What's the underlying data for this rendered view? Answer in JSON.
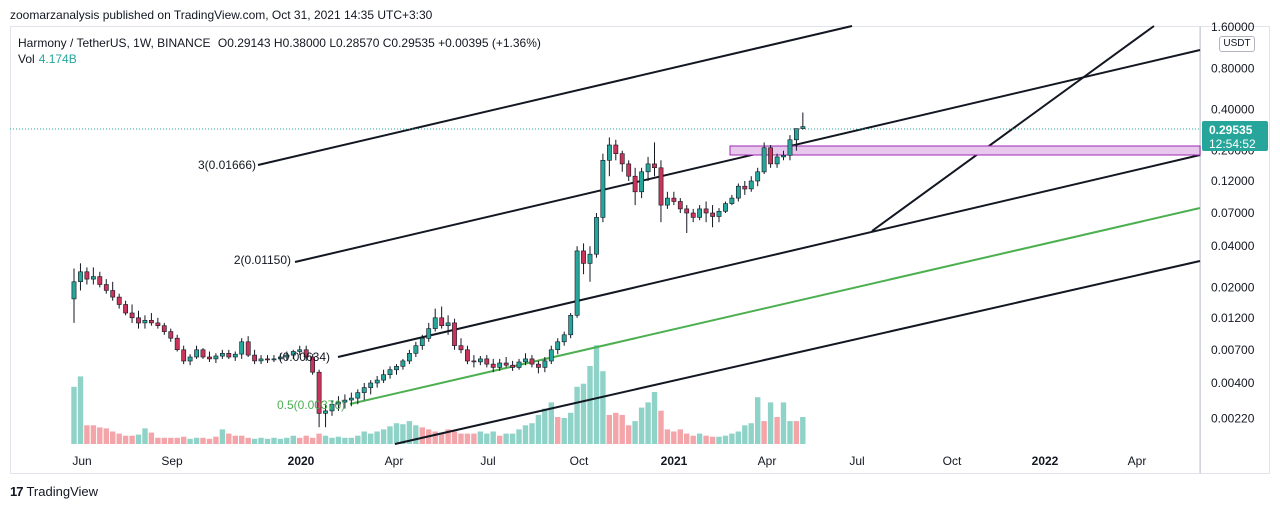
{
  "header": {
    "published_by": "zoomarzanalysis published on TradingView.com, Oct 31, 2021 14:35 UTC+3:30"
  },
  "legend": {
    "symbol": "Harmony / TetherUS, 1W, BINANCE",
    "open": "O0.29143",
    "high": "H0.38000",
    "low": "L0.28570",
    "close": "C0.29535",
    "change": "+0.00395 (+1.36%)",
    "vol_label": "Vol",
    "vol_value": "4.174B"
  },
  "price_scale": {
    "currency": "USDT",
    "last_price": "0.29535",
    "countdown": "12:54:52",
    "ticks": [
      "1.60000",
      "0.80000",
      "0.40000",
      "0.20000",
      "0.12000",
      "0.07000",
      "0.04000",
      "0.02000",
      "0.01200",
      "0.00700",
      "0.00400",
      "0.00220"
    ]
  },
  "footer": {
    "brand": "TradingView"
  },
  "colors": {
    "up": "#26a69a",
    "down": "#c8345a",
    "vol_up": "#8fd3c8",
    "vol_down": "#f3a5a9",
    "channel": "#131722",
    "green_line": "#4caf50",
    "zone_fill": "#e9c8ee",
    "zone_border": "#9c27b0"
  },
  "chart_data": {
    "type": "candlestick",
    "scale": "log",
    "ylim": [
      0.0018,
      1.6
    ],
    "x_ticks": [
      "Jun",
      "Sep",
      "2020",
      "Apr",
      "Jul",
      "Oct",
      "2021",
      "Apr",
      "Jul",
      "Oct",
      "2022",
      "Apr"
    ],
    "fib_labels": [
      {
        "text": "3(0.01666)"
      },
      {
        "text": "2(0.01150)"
      },
      {
        "text": "(0.00634)"
      },
      {
        "text": "0.5(0.00376)"
      }
    ],
    "candles": [
      [
        0.0165,
        0.0275,
        0.011,
        0.022
      ],
      [
        0.022,
        0.03,
        0.019,
        0.026
      ],
      [
        0.026,
        0.028,
        0.021,
        0.023
      ],
      [
        0.023,
        0.028,
        0.021,
        0.024
      ],
      [
        0.024,
        0.026,
        0.02,
        0.021
      ],
      [
        0.021,
        0.023,
        0.018,
        0.019
      ],
      [
        0.019,
        0.022,
        0.016,
        0.017
      ],
      [
        0.017,
        0.018,
        0.014,
        0.015
      ],
      [
        0.015,
        0.016,
        0.0125,
        0.013
      ],
      [
        0.013,
        0.015,
        0.011,
        0.012
      ],
      [
        0.012,
        0.0135,
        0.01,
        0.011
      ],
      [
        0.011,
        0.0125,
        0.01,
        0.0115
      ],
      [
        0.0115,
        0.013,
        0.0105,
        0.011
      ],
      [
        0.011,
        0.012,
        0.01,
        0.0105
      ],
      [
        0.0105,
        0.011,
        0.009,
        0.0095
      ],
      [
        0.0095,
        0.01,
        0.008,
        0.0085
      ],
      [
        0.0085,
        0.009,
        0.0068,
        0.007
      ],
      [
        0.007,
        0.0075,
        0.0055,
        0.0058
      ],
      [
        0.0058,
        0.0065,
        0.0054,
        0.0062
      ],
      [
        0.0062,
        0.0075,
        0.006,
        0.007
      ],
      [
        0.007,
        0.0072,
        0.006,
        0.0062
      ],
      [
        0.0062,
        0.0068,
        0.0057,
        0.006
      ],
      [
        0.006,
        0.0066,
        0.0056,
        0.0063
      ],
      [
        0.0063,
        0.007,
        0.006,
        0.0066
      ],
      [
        0.0066,
        0.007,
        0.006,
        0.0062
      ],
      [
        0.0062,
        0.0068,
        0.0058,
        0.0065
      ],
      [
        0.0065,
        0.0085,
        0.006,
        0.008
      ],
      [
        0.008,
        0.0088,
        0.0062,
        0.0064
      ],
      [
        0.0064,
        0.007,
        0.0055,
        0.0058
      ],
      [
        0.0058,
        0.0064,
        0.0055,
        0.006
      ],
      [
        0.006,
        0.0064,
        0.0056,
        0.0059
      ],
      [
        0.0059,
        0.0064,
        0.0057,
        0.006
      ],
      [
        0.006,
        0.0066,
        0.0058,
        0.0062
      ],
      [
        0.0062,
        0.0068,
        0.0059,
        0.0064
      ],
      [
        0.0064,
        0.007,
        0.006,
        0.0068
      ],
      [
        0.0068,
        0.0075,
        0.0064,
        0.007
      ],
      [
        0.007,
        0.0075,
        0.0058,
        0.0062
      ],
      [
        0.0062,
        0.0065,
        0.0046,
        0.0048
      ],
      [
        0.0048,
        0.005,
        0.0019,
        0.0024
      ],
      [
        0.0024,
        0.0028,
        0.0019,
        0.0025
      ],
      [
        0.0025,
        0.003,
        0.0023,
        0.0028
      ],
      [
        0.0028,
        0.0032,
        0.0025,
        0.0029
      ],
      [
        0.0029,
        0.0033,
        0.0026,
        0.003
      ],
      [
        0.003,
        0.0034,
        0.0027,
        0.0031
      ],
      [
        0.0031,
        0.0036,
        0.0028,
        0.0034
      ],
      [
        0.0034,
        0.004,
        0.003,
        0.0037
      ],
      [
        0.0037,
        0.0042,
        0.0033,
        0.004
      ],
      [
        0.004,
        0.0045,
        0.0037,
        0.0042
      ],
      [
        0.0042,
        0.005,
        0.004,
        0.0046
      ],
      [
        0.0046,
        0.0053,
        0.0043,
        0.005
      ],
      [
        0.005,
        0.0055,
        0.0046,
        0.0053
      ],
      [
        0.0053,
        0.006,
        0.005,
        0.0058
      ],
      [
        0.0058,
        0.007,
        0.0055,
        0.0066
      ],
      [
        0.0066,
        0.008,
        0.0062,
        0.0075
      ],
      [
        0.0075,
        0.009,
        0.007,
        0.0085
      ],
      [
        0.0085,
        0.011,
        0.008,
        0.01
      ],
      [
        0.01,
        0.014,
        0.0095,
        0.012
      ],
      [
        0.012,
        0.0145,
        0.01,
        0.0105
      ],
      [
        0.0105,
        0.0125,
        0.009,
        0.011
      ],
      [
        0.011,
        0.0118,
        0.007,
        0.0075
      ],
      [
        0.0075,
        0.0085,
        0.0066,
        0.007
      ],
      [
        0.007,
        0.0075,
        0.0055,
        0.0058
      ],
      [
        0.0058,
        0.0064,
        0.0052,
        0.0057
      ],
      [
        0.0057,
        0.0063,
        0.0054,
        0.006
      ],
      [
        0.006,
        0.0064,
        0.0052,
        0.0055
      ],
      [
        0.0055,
        0.006,
        0.0048,
        0.0052
      ],
      [
        0.0052,
        0.006,
        0.0049,
        0.0056
      ],
      [
        0.0056,
        0.0062,
        0.0052,
        0.0054
      ],
      [
        0.0054,
        0.0058,
        0.0049,
        0.0052
      ],
      [
        0.0052,
        0.006,
        0.005,
        0.0057
      ],
      [
        0.0057,
        0.0066,
        0.0054,
        0.006
      ],
      [
        0.006,
        0.0064,
        0.0052,
        0.0055
      ],
      [
        0.0055,
        0.0058,
        0.0047,
        0.0052
      ],
      [
        0.0052,
        0.0062,
        0.0048,
        0.0058
      ],
      [
        0.0058,
        0.0075,
        0.0055,
        0.007
      ],
      [
        0.007,
        0.0085,
        0.0065,
        0.008
      ],
      [
        0.008,
        0.0095,
        0.0075,
        0.009
      ],
      [
        0.009,
        0.013,
        0.0085,
        0.0125
      ],
      [
        0.0125,
        0.04,
        0.012,
        0.037
      ],
      [
        0.037,
        0.042,
        0.025,
        0.03
      ],
      [
        0.03,
        0.04,
        0.022,
        0.035
      ],
      [
        0.035,
        0.07,
        0.033,
        0.065
      ],
      [
        0.065,
        0.19,
        0.06,
        0.17
      ],
      [
        0.17,
        0.25,
        0.13,
        0.22
      ],
      [
        0.22,
        0.24,
        0.17,
        0.19
      ],
      [
        0.19,
        0.2,
        0.14,
        0.16
      ],
      [
        0.16,
        0.17,
        0.12,
        0.13
      ],
      [
        0.13,
        0.15,
        0.08,
        0.1
      ],
      [
        0.1,
        0.15,
        0.09,
        0.14
      ],
      [
        0.14,
        0.18,
        0.12,
        0.16
      ],
      [
        0.16,
        0.23,
        0.13,
        0.15
      ],
      [
        0.15,
        0.17,
        0.06,
        0.08
      ],
      [
        0.08,
        0.1,
        0.075,
        0.09
      ],
      [
        0.09,
        0.1,
        0.08,
        0.085
      ],
      [
        0.085,
        0.09,
        0.07,
        0.075
      ],
      [
        0.075,
        0.08,
        0.05,
        0.07
      ],
      [
        0.07,
        0.075,
        0.06,
        0.065
      ],
      [
        0.065,
        0.08,
        0.062,
        0.075
      ],
      [
        0.075,
        0.085,
        0.06,
        0.07
      ],
      [
        0.07,
        0.08,
        0.055,
        0.066
      ],
      [
        0.066,
        0.076,
        0.06,
        0.072
      ],
      [
        0.072,
        0.085,
        0.07,
        0.082
      ],
      [
        0.082,
        0.095,
        0.08,
        0.09
      ],
      [
        0.09,
        0.115,
        0.085,
        0.11
      ],
      [
        0.11,
        0.12,
        0.095,
        0.105
      ],
      [
        0.105,
        0.13,
        0.1,
        0.12
      ],
      [
        0.12,
        0.15,
        0.11,
        0.14
      ],
      [
        0.14,
        0.23,
        0.135,
        0.21
      ],
      [
        0.21,
        0.22,
        0.15,
        0.16
      ],
      [
        0.16,
        0.19,
        0.15,
        0.18
      ],
      [
        0.18,
        0.2,
        0.17,
        0.185
      ],
      [
        0.185,
        0.26,
        0.17,
        0.24
      ],
      [
        0.24,
        0.29,
        0.2,
        0.29
      ],
      [
        0.29,
        0.38,
        0.285,
        0.3
      ]
    ],
    "volumes": [
      [
        0.55,
        "up"
      ],
      [
        0.65,
        "up"
      ],
      [
        0.18,
        "down"
      ],
      [
        0.18,
        "down"
      ],
      [
        0.16,
        "down"
      ],
      [
        0.15,
        "down"
      ],
      [
        0.12,
        "down"
      ],
      [
        0.1,
        "down"
      ],
      [
        0.08,
        "down"
      ],
      [
        0.08,
        "down"
      ],
      [
        0.09,
        "up"
      ],
      [
        0.15,
        "up"
      ],
      [
        0.11,
        "down"
      ],
      [
        0.06,
        "down"
      ],
      [
        0.06,
        "down"
      ],
      [
        0.06,
        "down"
      ],
      [
        0.06,
        "down"
      ],
      [
        0.07,
        "down"
      ],
      [
        0.05,
        "up"
      ],
      [
        0.06,
        "up"
      ],
      [
        0.06,
        "down"
      ],
      [
        0.05,
        "down"
      ],
      [
        0.07,
        "down"
      ],
      [
        0.14,
        "up"
      ],
      [
        0.1,
        "down"
      ],
      [
        0.08,
        "down"
      ],
      [
        0.08,
        "down"
      ],
      [
        0.06,
        "down"
      ],
      [
        0.05,
        "up"
      ],
      [
        0.06,
        "up"
      ],
      [
        0.05,
        "up"
      ],
      [
        0.06,
        "up"
      ],
      [
        0.05,
        "up"
      ],
      [
        0.06,
        "up"
      ],
      [
        0.08,
        "up"
      ],
      [
        0.06,
        "down"
      ],
      [
        0.08,
        "down"
      ],
      [
        0.06,
        "down"
      ],
      [
        0.1,
        "down"
      ],
      [
        0.08,
        "up"
      ],
      [
        0.06,
        "up"
      ],
      [
        0.07,
        "up"
      ],
      [
        0.06,
        "up"
      ],
      [
        0.06,
        "up"
      ],
      [
        0.08,
        "up"
      ],
      [
        0.12,
        "up"
      ],
      [
        0.1,
        "up"
      ],
      [
        0.12,
        "up"
      ],
      [
        0.14,
        "up"
      ],
      [
        0.17,
        "up"
      ],
      [
        0.2,
        "up"
      ],
      [
        0.19,
        "up"
      ],
      [
        0.22,
        "up"
      ],
      [
        0.18,
        "up"
      ],
      [
        0.16,
        "down"
      ],
      [
        0.14,
        "down"
      ],
      [
        0.12,
        "down"
      ],
      [
        0.11,
        "down"
      ],
      [
        0.14,
        "down"
      ],
      [
        0.12,
        "down"
      ],
      [
        0.1,
        "down"
      ],
      [
        0.1,
        "down"
      ],
      [
        0.1,
        "down"
      ],
      [
        0.12,
        "up"
      ],
      [
        0.1,
        "up"
      ],
      [
        0.12,
        "up"
      ],
      [
        0.08,
        "down"
      ],
      [
        0.1,
        "up"
      ],
      [
        0.1,
        "up"
      ],
      [
        0.14,
        "up"
      ],
      [
        0.18,
        "up"
      ],
      [
        0.2,
        "up"
      ],
      [
        0.28,
        "up"
      ],
      [
        0.34,
        "up"
      ],
      [
        0.4,
        "up"
      ],
      [
        0.26,
        "down"
      ],
      [
        0.25,
        "up"
      ],
      [
        0.3,
        "up"
      ],
      [
        0.55,
        "up"
      ],
      [
        0.58,
        "up"
      ],
      [
        0.75,
        "up"
      ],
      [
        0.95,
        "up"
      ],
      [
        0.7,
        "up"
      ],
      [
        0.28,
        "down"
      ],
      [
        0.3,
        "down"
      ],
      [
        0.28,
        "down"
      ],
      [
        0.18,
        "down"
      ],
      [
        0.22,
        "up"
      ],
      [
        0.35,
        "up"
      ],
      [
        0.4,
        "up"
      ],
      [
        0.5,
        "up"
      ],
      [
        0.32,
        "down"
      ],
      [
        0.14,
        "down"
      ],
      [
        0.12,
        "down"
      ],
      [
        0.14,
        "down"
      ],
      [
        0.1,
        "down"
      ],
      [
        0.08,
        "down"
      ],
      [
        0.1,
        "up"
      ],
      [
        0.08,
        "down"
      ],
      [
        0.07,
        "down"
      ],
      [
        0.07,
        "up"
      ],
      [
        0.08,
        "up"
      ],
      [
        0.1,
        "up"
      ],
      [
        0.12,
        "up"
      ],
      [
        0.18,
        "up"
      ],
      [
        0.2,
        "up"
      ],
      [
        0.45,
        "up"
      ],
      [
        0.22,
        "down"
      ],
      [
        0.4,
        "up"
      ],
      [
        0.26,
        "down"
      ],
      [
        0.4,
        "up"
      ],
      [
        0.22,
        "up"
      ],
      [
        0.22,
        "down"
      ],
      [
        0.26,
        "up"
      ]
    ]
  }
}
